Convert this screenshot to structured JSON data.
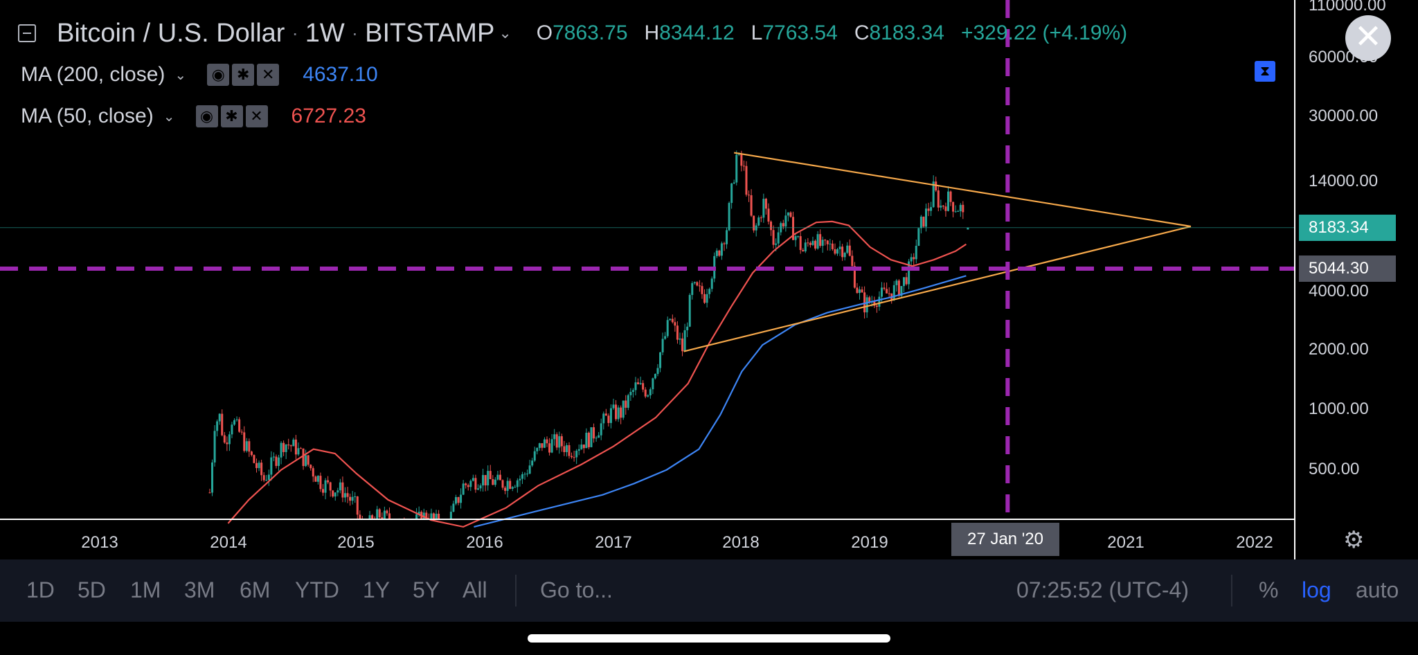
{
  "header": {
    "symbol": "Bitcoin / U.S. Dollar",
    "interval": "1W",
    "exchange": "BITSTAMP",
    "ohlc": [
      {
        "key": "O",
        "value": "7863.75"
      },
      {
        "key": "H",
        "value": "8344.12"
      },
      {
        "key": "L",
        "value": "7763.54"
      },
      {
        "key": "C",
        "value": "8183.34"
      }
    ],
    "change": "+329.22 (+4.19%)"
  },
  "indicators": [
    {
      "label": "MA (200, close)",
      "value": "4637.10",
      "color": "#3d85f5"
    },
    {
      "label": "MA (50, close)",
      "value": "6727.23",
      "color": "#ef5350"
    }
  ],
  "y_axis": {
    "ticks": [
      "110000.00",
      "60000.00",
      "30000.00",
      "14000.00",
      "4000.00",
      "2000.00",
      "1000.00",
      "500.00"
    ],
    "price_tags": [
      {
        "label": "8183.34",
        "bg": "#26a69a",
        "fg": "#ffffff"
      },
      {
        "label": "5044.30",
        "bg": "#50535e",
        "fg": "#ffffff"
      }
    ]
  },
  "x_axis": {
    "ticks": [
      "2013",
      "2014",
      "2015",
      "2016",
      "2017",
      "2018",
      "2019",
      "2021",
      "2022"
    ],
    "crosshair_label": "27 Jan '20"
  },
  "toolbar": {
    "ranges": [
      "1D",
      "5D",
      "1M",
      "3M",
      "6M",
      "YTD",
      "1Y",
      "5Y",
      "All"
    ],
    "goto": "Go to...",
    "clock": "07:25:52 (UTC-4)",
    "percent": "%",
    "log": "log",
    "auto": "auto"
  },
  "colors": {
    "up": "#26a69a",
    "down": "#ef5350",
    "trendline": "#f7a94b",
    "crosshair": "#9c27b0",
    "active": "#2962ff"
  },
  "chart_data": {
    "type": "candlestick",
    "title": "Bitcoin / U.S. Dollar",
    "log_scale": true,
    "ylim": [
      250,
      110000
    ],
    "xlim": [
      "2012-06-01",
      "2022-06-01"
    ],
    "last_close": 8183.34,
    "weekly_close": [
      {
        "x": "2013-11-10",
        "y": 360
      },
      {
        "x": "2013-11-24",
        "y": 820
      },
      {
        "x": "2013-12-08",
        "y": 880
      },
      {
        "x": "2013-12-22",
        "y": 640
      },
      {
        "x": "2014-01-12",
        "y": 860
      },
      {
        "x": "2014-02-09",
        "y": 690
      },
      {
        "x": "2014-03-02",
        "y": 570
      },
      {
        "x": "2014-04-13",
        "y": 420
      },
      {
        "x": "2014-05-25",
        "y": 580
      },
      {
        "x": "2014-06-08",
        "y": 650
      },
      {
        "x": "2014-07-13",
        "y": 610
      },
      {
        "x": "2014-08-17",
        "y": 500
      },
      {
        "x": "2014-09-21",
        "y": 410
      },
      {
        "x": "2014-10-19",
        "y": 380
      },
      {
        "x": "2014-11-23",
        "y": 370
      },
      {
        "x": "2014-12-28",
        "y": 310
      },
      {
        "x": "2015-01-18",
        "y": 230
      },
      {
        "x": "2015-03-08",
        "y": 275
      },
      {
        "x": "2015-05-17",
        "y": 235
      },
      {
        "x": "2015-07-19",
        "y": 275
      },
      {
        "x": "2015-09-13",
        "y": 235
      },
      {
        "x": "2015-11-01",
        "y": 390
      },
      {
        "x": "2015-12-20",
        "y": 430
      },
      {
        "x": "2016-02-14",
        "y": 400
      },
      {
        "x": "2016-04-17",
        "y": 430
      },
      {
        "x": "2016-06-12",
        "y": 640
      },
      {
        "x": "2016-07-24",
        "y": 650
      },
      {
        "x": "2016-09-04",
        "y": 600
      },
      {
        "x": "2016-10-30",
        "y": 700
      },
      {
        "x": "2016-12-25",
        "y": 920
      },
      {
        "x": "2017-01-22",
        "y": 920
      },
      {
        "x": "2017-03-05",
        "y": 1250
      },
      {
        "x": "2017-04-09",
        "y": 1200
      },
      {
        "x": "2017-05-21",
        "y": 2050
      },
      {
        "x": "2017-06-11",
        "y": 2800
      },
      {
        "x": "2017-07-16",
        "y": 1950
      },
      {
        "x": "2017-08-13",
        "y": 4000
      },
      {
        "x": "2017-09-17",
        "y": 3700
      },
      {
        "x": "2017-10-22",
        "y": 5900
      },
      {
        "x": "2017-11-19",
        "y": 8200
      },
      {
        "x": "2017-12-17",
        "y": 19000
      },
      {
        "x": "2018-01-07",
        "y": 16000
      },
      {
        "x": "2018-02-04",
        "y": 7500
      },
      {
        "x": "2018-03-04",
        "y": 11000
      },
      {
        "x": "2018-04-01",
        "y": 7000
      },
      {
        "x": "2018-05-06",
        "y": 9500
      },
      {
        "x": "2018-06-24",
        "y": 6200
      },
      {
        "x": "2018-07-22",
        "y": 7400
      },
      {
        "x": "2018-08-19",
        "y": 6400
      },
      {
        "x": "2018-09-23",
        "y": 6600
      },
      {
        "x": "2018-10-28",
        "y": 6400
      },
      {
        "x": "2018-11-25",
        "y": 4000
      },
      {
        "x": "2018-12-16",
        "y": 3300
      },
      {
        "x": "2019-01-20",
        "y": 3600
      },
      {
        "x": "2019-02-24",
        "y": 3800
      },
      {
        "x": "2019-03-31",
        "y": 4100
      },
      {
        "x": "2019-04-28",
        "y": 5300
      },
      {
        "x": "2019-05-26",
        "y": 8500
      },
      {
        "x": "2019-06-23",
        "y": 11000
      },
      {
        "x": "2019-06-30",
        "y": 12900
      },
      {
        "x": "2019-07-21",
        "y": 10500
      },
      {
        "x": "2019-08-11",
        "y": 11500
      },
      {
        "x": "2019-09-01",
        "y": 10500
      },
      {
        "x": "2019-09-15",
        "y": 10300
      },
      {
        "x": "2019-09-29",
        "y": 8200
      }
    ],
    "series": [
      {
        "name": "MA (50, close)",
        "color": "#ef5350",
        "points": [
          {
            "x": "2014-01-01",
            "y": 250
          },
          {
            "x": "2014-03-01",
            "y": 330
          },
          {
            "x": "2014-06-01",
            "y": 470
          },
          {
            "x": "2014-09-01",
            "y": 600
          },
          {
            "x": "2014-11-01",
            "y": 570
          },
          {
            "x": "2015-01-01",
            "y": 450
          },
          {
            "x": "2015-04-01",
            "y": 330
          },
          {
            "x": "2015-08-01",
            "y": 260
          },
          {
            "x": "2015-11-01",
            "y": 240
          },
          {
            "x": "2016-03-01",
            "y": 300
          },
          {
            "x": "2016-06-01",
            "y": 390
          },
          {
            "x": "2016-10-01",
            "y": 500
          },
          {
            "x": "2017-01-01",
            "y": 620
          },
          {
            "x": "2017-05-01",
            "y": 870
          },
          {
            "x": "2017-08-01",
            "y": 1300
          },
          {
            "x": "2017-10-01",
            "y": 2100
          },
          {
            "x": "2017-12-01",
            "y": 3200
          },
          {
            "x": "2018-02-01",
            "y": 4800
          },
          {
            "x": "2018-04-01",
            "y": 6200
          },
          {
            "x": "2018-06-01",
            "y": 7600
          },
          {
            "x": "2018-08-01",
            "y": 8700
          },
          {
            "x": "2018-09-15",
            "y": 8800
          },
          {
            "x": "2018-11-01",
            "y": 8400
          },
          {
            "x": "2019-01-01",
            "y": 6500
          },
          {
            "x": "2019-03-01",
            "y": 5600
          },
          {
            "x": "2019-05-01",
            "y": 5200
          },
          {
            "x": "2019-07-01",
            "y": 5600
          },
          {
            "x": "2019-09-01",
            "y": 6200
          },
          {
            "x": "2019-10-01",
            "y": 6727.23
          }
        ]
      },
      {
        "name": "MA (200, close)",
        "color": "#3d85f5",
        "points": [
          {
            "x": "2015-12-01",
            "y": 240
          },
          {
            "x": "2016-06-01",
            "y": 290
          },
          {
            "x": "2016-12-01",
            "y": 350
          },
          {
            "x": "2017-03-01",
            "y": 400
          },
          {
            "x": "2017-06-01",
            "y": 470
          },
          {
            "x": "2017-09-01",
            "y": 600
          },
          {
            "x": "2017-11-01",
            "y": 900
          },
          {
            "x": "2018-01-01",
            "y": 1500
          },
          {
            "x": "2018-03-01",
            "y": 2050
          },
          {
            "x": "2018-06-01",
            "y": 2600
          },
          {
            "x": "2018-09-01",
            "y": 3000
          },
          {
            "x": "2018-12-01",
            "y": 3300
          },
          {
            "x": "2019-03-01",
            "y": 3600
          },
          {
            "x": "2019-06-01",
            "y": 4000
          },
          {
            "x": "2019-10-01",
            "y": 4637.1
          }
        ]
      }
    ],
    "drawings": [
      {
        "kind": "trendline",
        "color": "#f7a94b",
        "from": {
          "x": "2017-12-10",
          "y": 19800
        },
        "to": {
          "x": "2021-07-01",
          "y": 8300
        }
      },
      {
        "kind": "trendline",
        "color": "#f7a94b",
        "from": {
          "x": "2017-07-20",
          "y": 1900
        },
        "to": {
          "x": "2021-07-01",
          "y": 8300
        }
      },
      {
        "kind": "horizontal",
        "color": "#9c27b0",
        "style": "dashed",
        "y": 5044.3
      },
      {
        "kind": "vertical",
        "color": "#9c27b0",
        "style": "dashed",
        "x": "2020-01-27"
      },
      {
        "kind": "horizontal",
        "color": "#26a69a",
        "style": "thin",
        "y": 8183.34
      }
    ]
  }
}
